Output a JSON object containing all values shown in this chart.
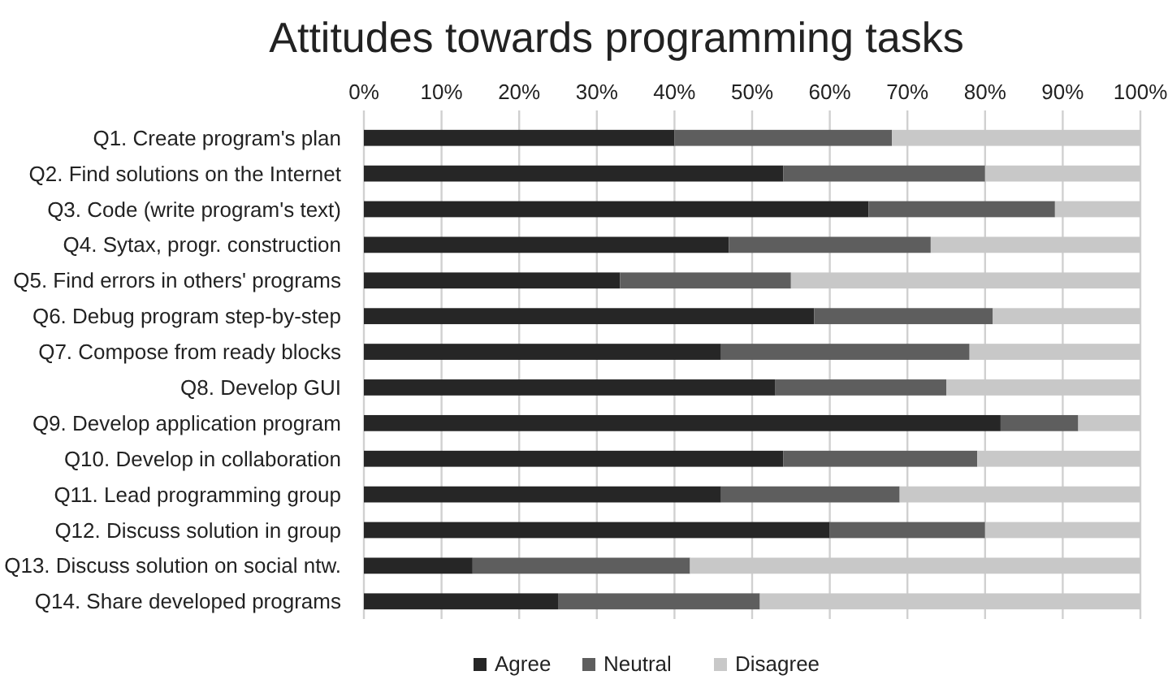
{
  "chart_data": {
    "type": "bar",
    "orientation": "horizontal",
    "stacked": true,
    "title": "Attitudes towards programming tasks",
    "categories": [
      "Q1. Create program's plan",
      "Q2. Find solutions on the Internet",
      "Q3. Code (write program's text)",
      "Q4. Sytax, progr. construction",
      "Q5. Find errors in others' programs",
      "Q6. Debug program step-by-step",
      "Q7. Compose from ready blocks",
      "Q8. Develop GUI",
      "Q9. Develop application program",
      "Q10. Develop in collaboration",
      "Q11. Lead programming group",
      "Q12. Discuss solution in group",
      "Q13. Discuss solution on social ntw.",
      "Q14. Share developed programs"
    ],
    "series": [
      {
        "name": "Agree",
        "color": "#262626",
        "values": [
          40,
          54,
          65,
          47,
          33,
          58,
          46,
          53,
          82,
          54,
          46,
          60,
          14,
          25
        ]
      },
      {
        "name": "Neutral",
        "color": "#5e5e5e",
        "values": [
          28,
          26,
          24,
          26,
          22,
          23,
          32,
          22,
          10,
          25,
          23,
          20,
          28,
          26
        ]
      },
      {
        "name": "Disagree",
        "color": "#c8c8c8",
        "values": [
          32,
          20,
          11,
          27,
          45,
          19,
          22,
          25,
          8,
          21,
          31,
          20,
          58,
          49
        ]
      }
    ],
    "xlim": [
      0,
      100
    ],
    "xticks": [
      {
        "value": 0,
        "label": "0%"
      },
      {
        "value": 10,
        "label": "10%"
      },
      {
        "value": 20,
        "label": "20%"
      },
      {
        "value": 30,
        "label": "30%"
      },
      {
        "value": 40,
        "label": "40%"
      },
      {
        "value": 50,
        "label": "50%"
      },
      {
        "value": 60,
        "label": "60%"
      },
      {
        "value": 70,
        "label": "70%"
      },
      {
        "value": 80,
        "label": "80%"
      },
      {
        "value": 90,
        "label": "90%"
      },
      {
        "value": 100,
        "label": "100%"
      }
    ],
    "grid": "x",
    "legend": "bottom"
  }
}
